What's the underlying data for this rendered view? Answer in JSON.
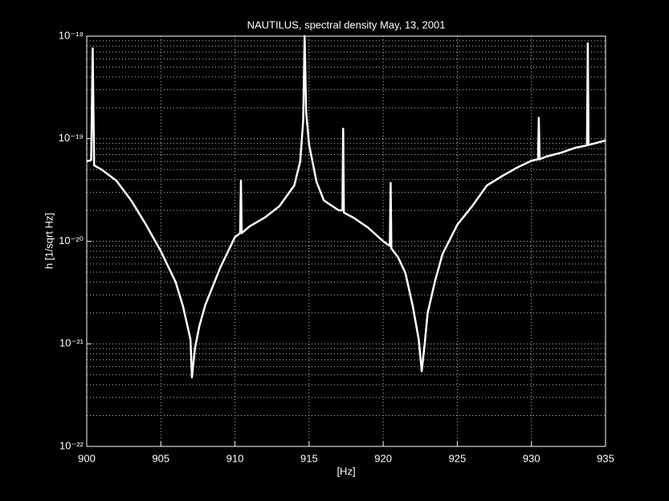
{
  "chart_data": {
    "type": "line",
    "title": "NAUTILUS, spectral density May, 13, 2001",
    "x_label": "[Hz]",
    "y_label": "h [1/sqrt Hz]",
    "xlim": [
      900,
      935
    ],
    "xticks": [
      900,
      905,
      910,
      915,
      920,
      925,
      930,
      935
    ],
    "ylim": [
      1e-22,
      1e-18
    ],
    "y_scale": "log",
    "yticks": [
      {
        "value": 1e-22,
        "label": "10⁻²²"
      },
      {
        "value": 1e-21,
        "label": "10⁻²¹"
      },
      {
        "value": 1e-20,
        "label": "10⁻²⁰"
      },
      {
        "value": 1e-19,
        "label": "10⁻¹⁹"
      },
      {
        "value": 1e-18,
        "label": "10⁻¹⁸"
      }
    ],
    "grid": true,
    "minor_grid": true,
    "series": [
      {
        "color": "#ffffff",
        "x": [
          900,
          900.3,
          900.4,
          900.5,
          901,
          902,
          903,
          904,
          905,
          906,
          906.5,
          907,
          907.1,
          907.3,
          907.6,
          908,
          909,
          910,
          910.35,
          910.4,
          910.45,
          911,
          912,
          913,
          914,
          914.4,
          914.6,
          914.7,
          914.8,
          915,
          915.5,
          916,
          917,
          917.25,
          917.3,
          917.35,
          918,
          919,
          920,
          920.45,
          920.5,
          920.55,
          921,
          921.5,
          922,
          922.4,
          922.6,
          922.8,
          923,
          923.5,
          924,
          925,
          926,
          927,
          928,
          929,
          930,
          930.45,
          930.5,
          930.55,
          931,
          932,
          933,
          933.75,
          933.8,
          933.85,
          934,
          935
        ],
        "values": [
          6e-20,
          6.2e-20,
          7.6e-19,
          5.5e-20,
          5e-20,
          3.9e-20,
          2.5e-20,
          1.45e-20,
          8e-21,
          4e-21,
          2.3e-21,
          1.1e-21,
          4.7e-22,
          9e-22,
          1.5e-21,
          2.4e-21,
          5.5e-21,
          1.1e-20,
          1.2e-20,
          3.9e-20,
          1.2e-20,
          1.4e-20,
          1.7e-20,
          2.2e-20,
          3.5e-20,
          6e-20,
          1.5e-19,
          1e-18,
          1.8e-19,
          8.7e-20,
          3.8e-20,
          2.5e-20,
          2e-20,
          2e-20,
          1.25e-19,
          1.9e-20,
          1.7e-20,
          1.35e-20,
          1e-20,
          9e-21,
          3.7e-20,
          8.5e-21,
          7e-21,
          4.9e-21,
          2.3e-21,
          1.1e-21,
          5.4e-22,
          1e-21,
          2e-21,
          4.1e-21,
          7.5e-21,
          1.45e-20,
          2.2e-20,
          3.5e-20,
          4.3e-20,
          5.2e-20,
          6.1e-20,
          6.3e-20,
          1.6e-19,
          6.3e-20,
          6.7e-20,
          7.3e-20,
          8.2e-20,
          8.6e-20,
          8.5e-19,
          8.7e-20,
          8.8e-20,
          9.6e-20
        ]
      }
    ]
  }
}
